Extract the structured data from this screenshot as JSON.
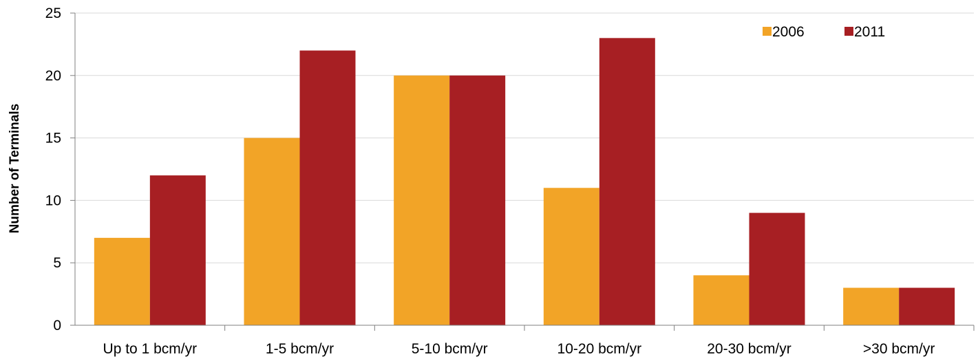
{
  "chart_data": {
    "type": "bar",
    "title": "",
    "xlabel": "",
    "ylabel": "Number of Terminals",
    "ylim": [
      0,
      25
    ],
    "yticks": [
      0,
      5,
      10,
      15,
      20,
      25
    ],
    "grid": true,
    "legend_position": "top-right",
    "categories": [
      "Up to 1 bcm/yr",
      "1-5 bcm/yr",
      "5-10 bcm/yr",
      "10-20 bcm/yr",
      "20-30 bcm/yr",
      ">30 bcm/yr"
    ],
    "series": [
      {
        "name": "2006",
        "color": "#f2a427",
        "values": [
          7,
          15,
          20,
          11,
          4,
          3
        ]
      },
      {
        "name": "2011",
        "color": "#a71f23",
        "values": [
          12,
          22,
          20,
          23,
          9,
          3
        ]
      }
    ]
  }
}
